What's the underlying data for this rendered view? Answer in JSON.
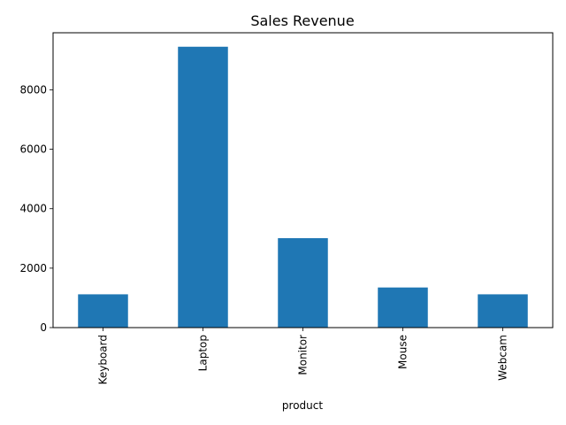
{
  "chart_data": {
    "type": "bar",
    "title": "Sales Revenue",
    "xlabel": "product",
    "ylabel": "",
    "categories": [
      "Keyboard",
      "Laptop",
      "Monitor",
      "Mouse",
      "Webcam"
    ],
    "values": [
      1120,
      9450,
      3010,
      1350,
      1120
    ],
    "ylim": [
      0,
      9920
    ],
    "yticks": [
      0,
      2000,
      4000,
      6000,
      8000
    ],
    "bar_color": "#1f77b4",
    "grid": false,
    "legend": false
  }
}
